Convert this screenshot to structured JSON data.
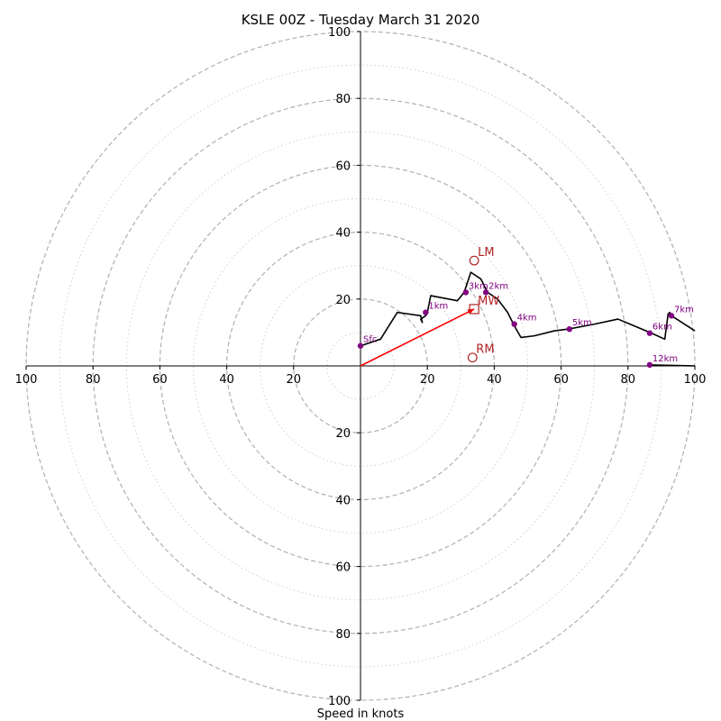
{
  "chart_data": {
    "type": "hodograph",
    "title": "KSLE 00Z - Tuesday March 31 2020",
    "xlabel": "Speed in knots",
    "xlim": [
      -100,
      100
    ],
    "ylim": [
      -100,
      100
    ],
    "rings": [
      10,
      20,
      30,
      40,
      50,
      60,
      70,
      80,
      90,
      100
    ],
    "x_tick_labels": [
      "100",
      "80",
      "60",
      "40",
      "20",
      "20",
      "40",
      "60",
      "80",
      "100"
    ],
    "x_tick_values": [
      -100,
      -80,
      -60,
      -40,
      -20,
      20,
      40,
      60,
      80,
      100
    ],
    "y_tick_labels": [
      "100",
      "80",
      "60",
      "40",
      "20",
      "20",
      "40",
      "60",
      "80",
      "100"
    ],
    "y_tick_values": [
      100,
      80,
      60,
      40,
      20,
      -20,
      -40,
      -60,
      -80,
      -100
    ],
    "hodograph_color": "#000000",
    "height_marker_color": "#800080",
    "storm_color": "#b22222",
    "shear_vector_color": "#ff0000",
    "hodograph": {
      "u": [
        0,
        6,
        11,
        18,
        18.5,
        18,
        19.5,
        20,
        21,
        29,
        31,
        33,
        36,
        38,
        41,
        44,
        46,
        48,
        52,
        58,
        62,
        70,
        77,
        83,
        87,
        91,
        92,
        92.5,
        93,
        100
      ],
      "v": [
        6,
        8,
        16,
        15,
        13,
        14,
        15,
        16,
        21,
        19.5,
        22,
        28,
        26,
        22,
        20,
        16,
        12,
        8.5,
        9,
        10.5,
        11,
        12.5,
        14,
        11.5,
        9.8,
        8,
        15.5,
        16,
        15,
        10.5
      ]
    },
    "upper_segment": {
      "u": [
        86.5,
        100
      ],
      "v": [
        0.3,
        0
      ]
    },
    "height_markers": [
      {
        "label": "Sfc",
        "u": 0,
        "v": 6
      },
      {
        "label": "1km",
        "u": 19.5,
        "v": 16
      },
      {
        "label": "2km",
        "u": 37.5,
        "v": 22
      },
      {
        "label": "3km",
        "u": 31.5,
        "v": 22
      },
      {
        "label": "4km",
        "u": 46,
        "v": 12.5
      },
      {
        "label": "5km",
        "u": 62.5,
        "v": 11
      },
      {
        "label": "6km",
        "u": 86.5,
        "v": 9.8
      },
      {
        "label": "7km",
        "u": 93,
        "v": 15
      },
      {
        "label": "12km",
        "u": 86.5,
        "v": 0.3
      }
    ],
    "storm_motions": [
      {
        "label": "LM",
        "u": 34,
        "v": 31.5,
        "marker": "circle"
      },
      {
        "label": "RM",
        "u": 33.5,
        "v": 2.5,
        "marker": "circle"
      },
      {
        "label": "MW",
        "u": 34,
        "v": 17,
        "marker": "square"
      }
    ],
    "shear_vector": {
      "from": [
        0,
        0
      ],
      "to": [
        34,
        17
      ]
    }
  }
}
